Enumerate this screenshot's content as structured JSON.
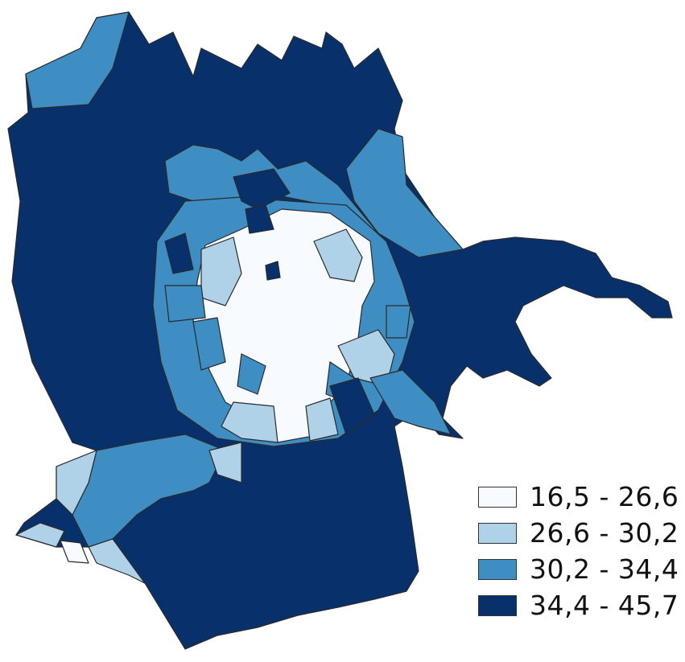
{
  "legend": {
    "classes": [
      {
        "label": "16,5 - 26,6",
        "color": "#f7fbff"
      },
      {
        "label": "26,6 - 30,2",
        "color": "#b0d2e8"
      },
      {
        "label": "30,2 - 34,4",
        "color": "#3e8ec4"
      },
      {
        "label": "34,4 - 45,7",
        "color": "#08306b"
      }
    ]
  }
}
